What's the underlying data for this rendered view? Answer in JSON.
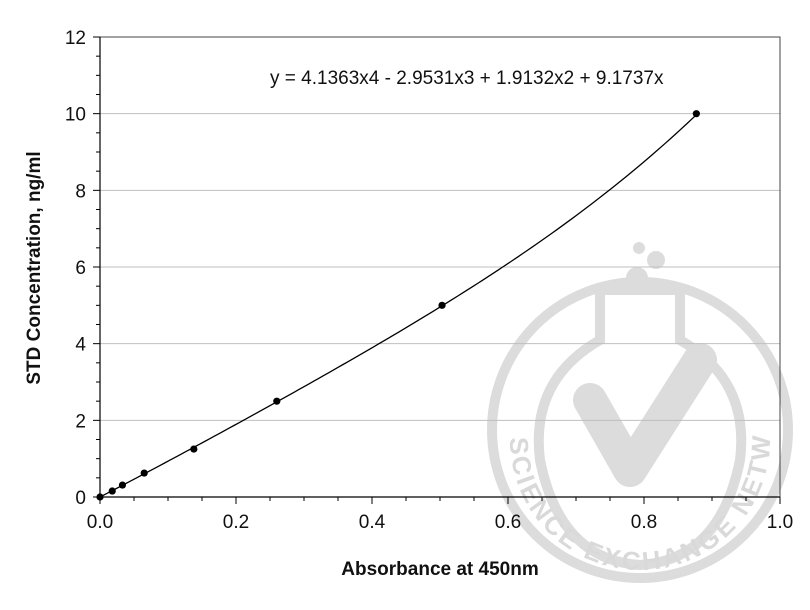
{
  "chart_data": {
    "type": "scatter",
    "title": "",
    "xlabel": "Absorbance at 450nm",
    "ylabel": "STD Concentration, ng/ml",
    "xlim": [
      0,
      1.0
    ],
    "ylim": [
      0,
      12
    ],
    "x_ticks": [
      "0.0",
      "0.2",
      "0.4",
      "0.6",
      "0.8",
      "1.0"
    ],
    "y_ticks": [
      "0",
      "2",
      "4",
      "6",
      "8",
      "10",
      "12"
    ],
    "grid": "horizontal",
    "series": [
      {
        "x": [
          0.0,
          0.018,
          0.033,
          0.065,
          0.138,
          0.26,
          0.503,
          0.877
        ],
        "y": [
          0.0,
          0.156,
          0.312,
          0.625,
          1.25,
          2.5,
          5.0,
          10.0
        ]
      }
    ],
    "trendline": {
      "type": "polynomial",
      "equation": "y = 4.1363x4 - 2.9531x3 + 1.9132x2 + 9.1737x",
      "coefficients": [
        0,
        9.1737,
        1.9132,
        -2.9531,
        4.1363
      ],
      "x_range": [
        0,
        0.877
      ]
    },
    "watermark": "THE SCIENCE EXCHANGE NETWORK"
  },
  "colors": {
    "axis": "#000000",
    "grid": "#bfbfbf",
    "point": "#000000",
    "curve": "#000000",
    "watermark": "#d9d9d9"
  }
}
